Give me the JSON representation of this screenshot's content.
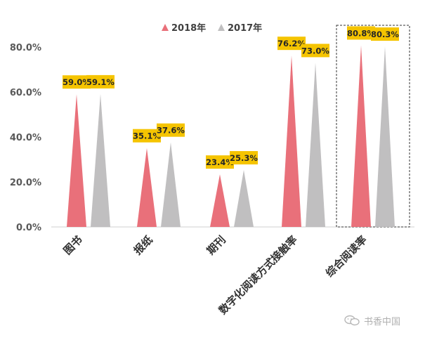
{
  "chart_data": {
    "type": "bar",
    "mark": "triangle",
    "categories": [
      "图书",
      "报纸",
      "期刊",
      "数字化阅读方式接触率",
      "综合阅读率"
    ],
    "series": [
      {
        "name": "2018年",
        "values": [
          59.0,
          35.1,
          23.4,
          76.2,
          80.8
        ],
        "color": "#e9707a"
      },
      {
        "name": "2017年",
        "values": [
          59.1,
          37.6,
          25.3,
          73.0,
          80.3
        ],
        "color": "#c0bfc0"
      }
    ],
    "data_labels": [
      [
        "59.0%",
        "35.1%",
        "23.4%",
        "76.2%",
        "80.8%"
      ],
      [
        "59.1%",
        "37.6%",
        "25.3%",
        "73.0%",
        "80.3%"
      ]
    ],
    "yticks": [
      "0.0%",
      "20.0%",
      "40.0%",
      "60.0%",
      "80.0%"
    ],
    "ylim": [
      0,
      80
    ],
    "grid": false,
    "legend_position": "top-center",
    "highlight_category": "综合阅读率",
    "label_box_color": "#f5c400"
  },
  "watermark": {
    "text": "书香中国",
    "icon": "wechat-icon"
  }
}
